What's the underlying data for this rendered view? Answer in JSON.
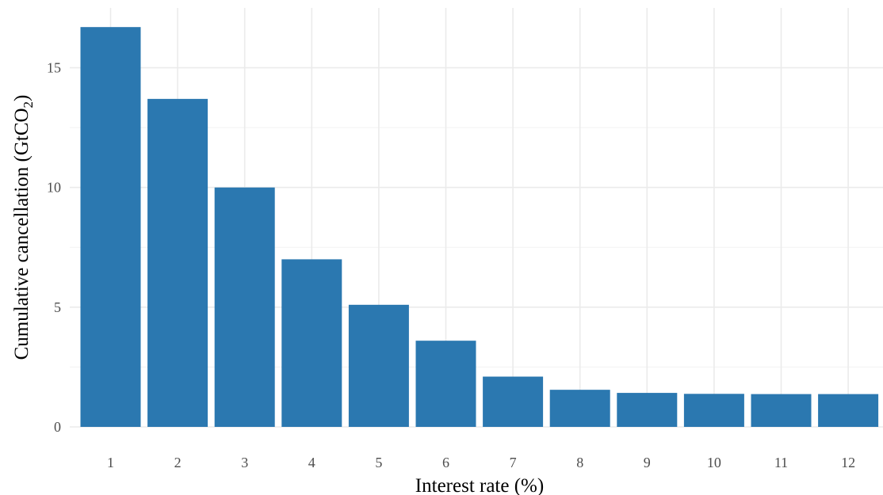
{
  "chart_data": {
    "type": "bar",
    "categories": [
      "1",
      "2",
      "3",
      "4",
      "5",
      "6",
      "7",
      "8",
      "9",
      "10",
      "11",
      "12"
    ],
    "values": [
      16.7,
      13.7,
      10.0,
      7.0,
      5.1,
      3.6,
      2.1,
      1.55,
      1.42,
      1.38,
      1.37,
      1.37
    ],
    "xlabel": "Interest rate (%)",
    "ylabel_main": "Cumulative cancellation (GtCO",
    "ylabel_sub": "2",
    "ylabel_end": ")",
    "ylim": [
      0,
      17.5
    ],
    "yticks": [
      "0",
      "5",
      "10",
      "15"
    ],
    "grid": true,
    "bar_color": "#2b78b0"
  }
}
